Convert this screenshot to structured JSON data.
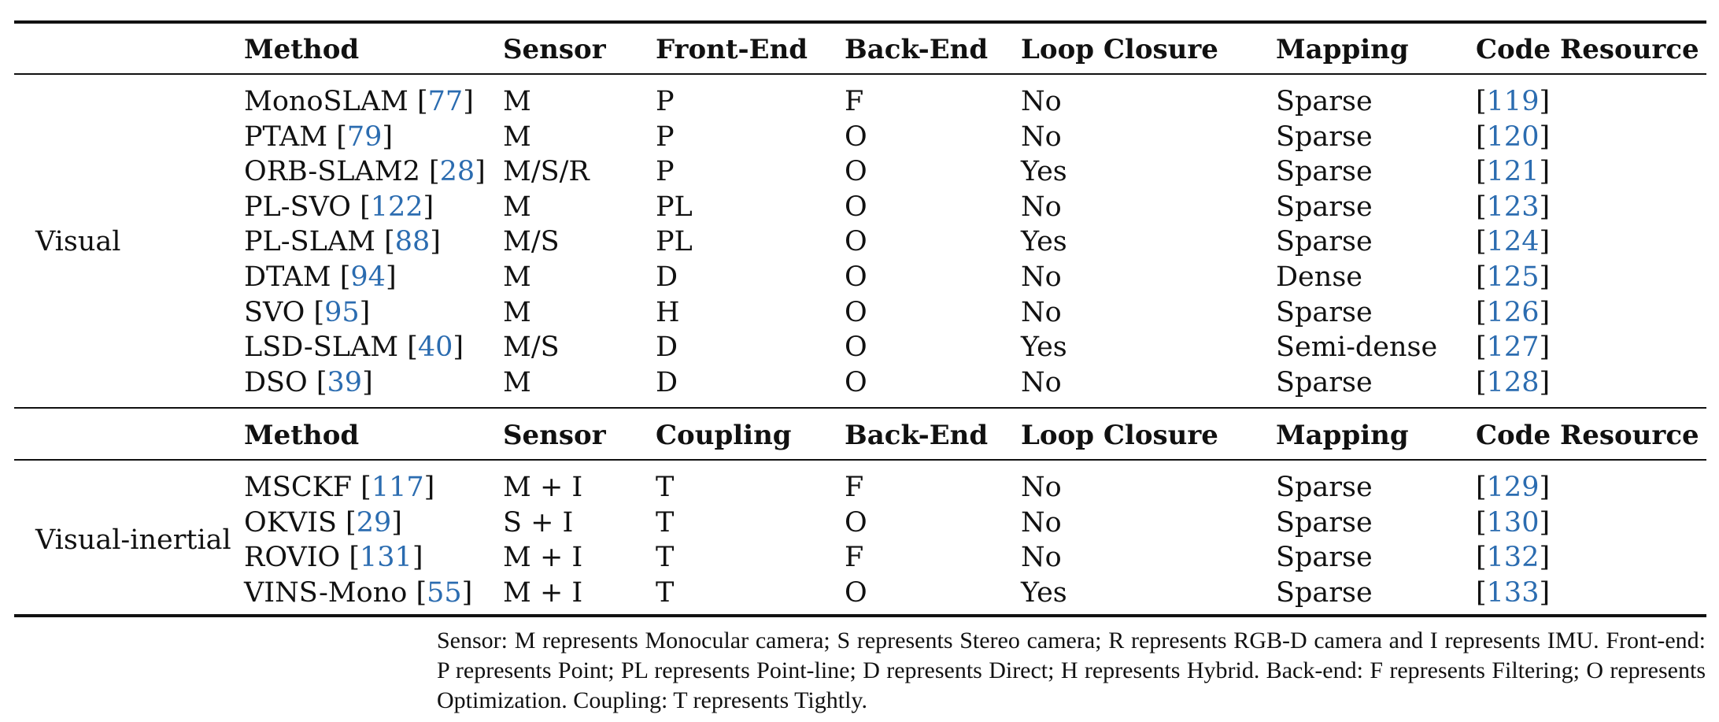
{
  "headers_visual": [
    "Method",
    "Sensor",
    "Front-End",
    "Back-End",
    "Loop Closure",
    "Mapping",
    "Code Resource"
  ],
  "headers_inertial": [
    "Method",
    "Sensor",
    "Coupling",
    "Back-End",
    "Loop Closure",
    "Mapping",
    "Code Resource"
  ],
  "groups": [
    {
      "label": "Visual",
      "rows": [
        {
          "method": "MonoSLAM",
          "cite": "77",
          "sensor": "M",
          "front": "P",
          "back": "F",
          "loop": "No",
          "mapping": "Sparse",
          "code": "119"
        },
        {
          "method": "PTAM",
          "cite": "79",
          "sensor": "M",
          "front": "P",
          "back": "O",
          "loop": "No",
          "mapping": "Sparse",
          "code": "120"
        },
        {
          "method": "ORB-SLAM2",
          "cite": "28",
          "sensor": "M/S/R",
          "front": "P",
          "back": "O",
          "loop": "Yes",
          "mapping": "Sparse",
          "code": "121"
        },
        {
          "method": "PL-SVO",
          "cite": "122",
          "sensor": "M",
          "front": "PL",
          "back": "O",
          "loop": "No",
          "mapping": "Sparse",
          "code": "123"
        },
        {
          "method": "PL-SLAM",
          "cite": "88",
          "sensor": "M/S",
          "front": "PL",
          "back": "O",
          "loop": "Yes",
          "mapping": "Sparse",
          "code": "124"
        },
        {
          "method": "DTAM",
          "cite": "94",
          "sensor": "M",
          "front": "D",
          "back": "O",
          "loop": "No",
          "mapping": "Dense",
          "code": "125"
        },
        {
          "method": "SVO",
          "cite": "95",
          "sensor": "M",
          "front": "H",
          "back": "O",
          "loop": "No",
          "mapping": "Sparse",
          "code": "126"
        },
        {
          "method": "LSD-SLAM",
          "cite": "40",
          "sensor": "M/S",
          "front": "D",
          "back": "O",
          "loop": "Yes",
          "mapping": "Semi-dense",
          "code": "127"
        },
        {
          "method": "DSO",
          "cite": "39",
          "sensor": "M",
          "front": "D",
          "back": "O",
          "loop": "No",
          "mapping": "Sparse",
          "code": "128"
        }
      ]
    },
    {
      "label": "Visual-inertial",
      "rows": [
        {
          "method": "MSCKF",
          "cite": "117",
          "sensor": "M + I",
          "front": "T",
          "back": "F",
          "loop": "No",
          "mapping": "Sparse",
          "code": "129"
        },
        {
          "method": "OKVIS",
          "cite": "29",
          "sensor": "S + I",
          "front": "T",
          "back": "O",
          "loop": "No",
          "mapping": "Sparse",
          "code": "130"
        },
        {
          "method": "ROVIO",
          "cite": "131",
          "sensor": "M + I",
          "front": "T",
          "back": "F",
          "loop": "No",
          "mapping": "Sparse",
          "code": "132"
        },
        {
          "method": "VINS-Mono",
          "cite": "55",
          "sensor": "M + I",
          "front": "T",
          "back": "O",
          "loop": "Yes",
          "mapping": "Sparse",
          "code": "133"
        }
      ]
    }
  ],
  "notes": "Sensor: M represents Monocular camera; S represents Stereo camera; R represents RGB-D camera and I represents IMU. Front-end: P represents Point; PL represents Point-line; D represents Direct; H represents Hybrid. Back-end: F represents Filtering; O represents Optimization. Coupling: T represents Tightly.",
  "colors": {
    "ink": "#111111",
    "citation": "#2b6cb0"
  }
}
